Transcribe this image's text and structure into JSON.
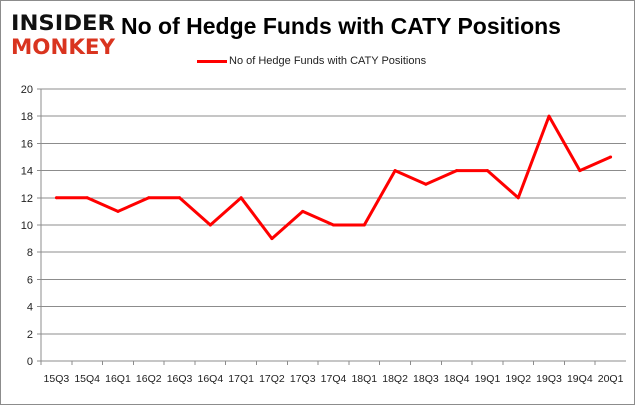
{
  "logo": {
    "line1": "INSIDER",
    "line2": "MONKEY",
    "colors": {
      "line1": "#111111",
      "line2": "#d9341f"
    }
  },
  "chart_data": {
    "type": "line",
    "title": "No of Hedge Funds with CATY Positions",
    "xlabel": "",
    "ylabel": "",
    "categories": [
      "15Q3",
      "15Q4",
      "16Q1",
      "16Q2",
      "16Q3",
      "16Q4",
      "17Q1",
      "17Q2",
      "17Q3",
      "17Q4",
      "18Q1",
      "18Q2",
      "18Q3",
      "18Q4",
      "19Q1",
      "19Q2",
      "19Q3",
      "19Q4",
      "20Q1"
    ],
    "series": [
      {
        "name": "No of Hedge Funds with CATY Positions",
        "color": "#ff0000",
        "values": [
          12,
          12,
          11,
          12,
          12,
          10,
          12,
          9,
          11,
          10,
          10,
          14,
          13,
          14,
          14,
          12,
          18,
          14,
          15
        ]
      }
    ],
    "ylim": [
      0,
      20
    ],
    "yticks": [
      0,
      2,
      4,
      6,
      8,
      10,
      12,
      14,
      16,
      18,
      20
    ],
    "grid": true,
    "legend": "top-center"
  }
}
